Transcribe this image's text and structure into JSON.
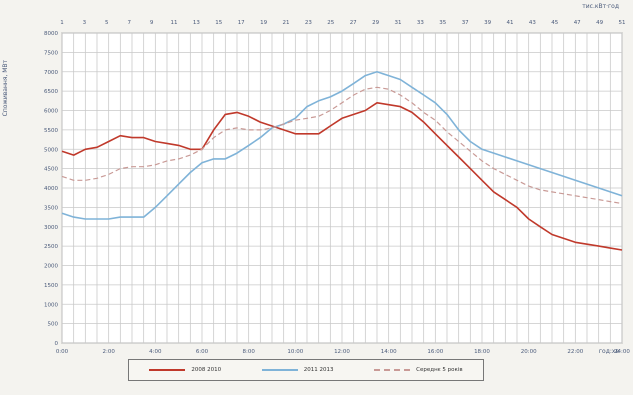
{
  "chart_data": {
    "type": "line",
    "title": "",
    "top_right_label": "тис.кВт·год",
    "ylabel": "Споживання, МВт",
    "xunit_label": "год:хв",
    "ylim": [
      0,
      8000
    ],
    "yticks": [
      0,
      500,
      1000,
      1500,
      2000,
      2500,
      3000,
      3500,
      4000,
      4500,
      5000,
      5500,
      6000,
      6500,
      7000,
      7500,
      8000
    ],
    "top_ticks": [
      "1",
      "3",
      "5",
      "7",
      "9",
      "11",
      "13",
      "15",
      "17",
      "19",
      "21",
      "23",
      "25",
      "27",
      "29",
      "31",
      "33",
      "35",
      "37",
      "39",
      "41",
      "43",
      "45",
      "47",
      "49",
      "51"
    ],
    "bottom_ticks": [
      "0:00",
      "2:00",
      "4:00",
      "6:00",
      "8:00",
      "10:00",
      "12:00",
      "14:00",
      "16:00",
      "18:00",
      "20:00",
      "22:00",
      "24:00"
    ],
    "x": [
      0,
      1,
      2,
      3,
      4,
      5,
      6,
      7,
      8,
      9,
      10,
      11,
      12,
      13,
      14,
      15,
      16,
      17,
      18,
      19,
      20,
      21,
      22,
      23,
      24,
      25,
      26,
      27,
      28,
      29,
      30,
      31,
      32,
      33,
      34,
      35,
      36,
      37,
      38,
      39,
      40,
      41,
      42,
      43,
      44,
      45,
      46,
      47,
      48
    ],
    "legend": {
      "placement": "bottom"
    },
    "series": [
      {
        "name": "2008 2010",
        "color": "#c0392b",
        "dash": "solid",
        "values": [
          4950,
          4850,
          5000,
          5050,
          5200,
          5350,
          5300,
          5300,
          5200,
          5150,
          5100,
          5000,
          5000,
          5500,
          5900,
          5950,
          5850,
          5700,
          5600,
          5500,
          5400,
          5400,
          5400,
          5600,
          5800,
          5900,
          6000,
          6200,
          6150,
          6100,
          5950,
          5700,
          5400,
          5100,
          4800,
          4500,
          4200,
          3900,
          3700,
          3500,
          3200,
          3000,
          2800,
          2700,
          2600,
          2550,
          2500,
          2450,
          2400
        ]
      },
      {
        "name": "2011 2013",
        "color": "#7fb3d8",
        "dash": "solid",
        "values": [
          3350,
          3250,
          3200,
          3200,
          3200,
          3250,
          3250,
          3250,
          3500,
          3800,
          4100,
          4400,
          4650,
          4750,
          4750,
          4900,
          5100,
          5300,
          5550,
          5650,
          5800,
          6100,
          6250,
          6350,
          6500,
          6700,
          6900,
          7000,
          6900,
          6800,
          6600,
          6400,
          6200,
          5900,
          5500,
          5200,
          5000,
          4900,
          4800,
          4700,
          4600,
          4500,
          4400,
          4300,
          4200,
          4100,
          4000,
          3900,
          3800
        ]
      },
      {
        "name": "Середнє 5 років",
        "color": "#c99a96",
        "dash": "dashed",
        "values": [
          4300,
          4200,
          4200,
          4250,
          4350,
          4500,
          4550,
          4550,
          4600,
          4700,
          4750,
          4850,
          5000,
          5300,
          5500,
          5550,
          5500,
          5500,
          5550,
          5650,
          5750,
          5800,
          5850,
          6000,
          6200,
          6400,
          6550,
          6600,
          6550,
          6400,
          6200,
          5950,
          5750,
          5450,
          5200,
          4950,
          4700,
          4500,
          4350,
          4200,
          4050,
          3950,
          3900,
          3850,
          3800,
          3750,
          3700,
          3650,
          3600
        ]
      }
    ]
  }
}
